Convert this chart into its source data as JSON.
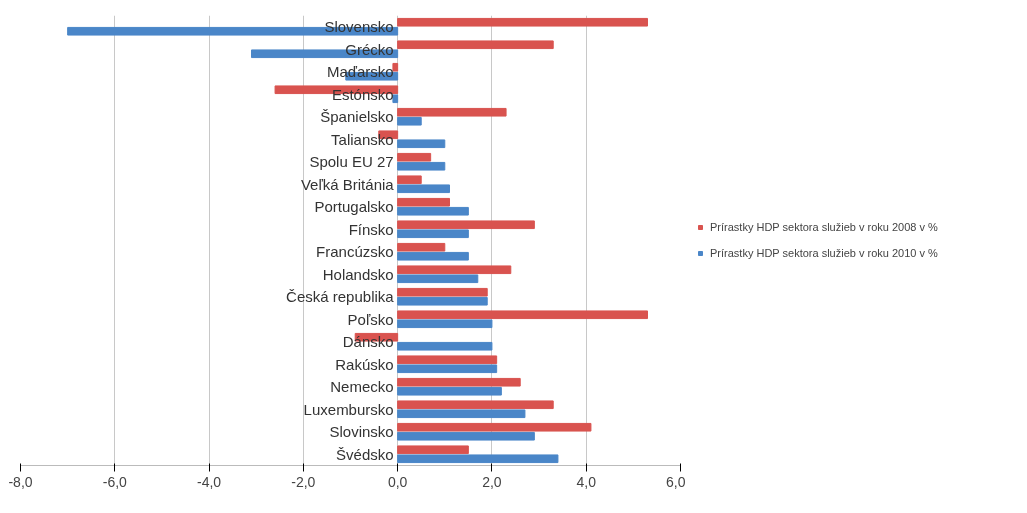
{
  "chart_data": {
    "type": "bar",
    "orientation": "horizontal",
    "categories": [
      "Slovensko",
      "Grécko",
      "Maďarsko",
      "Estónsko",
      "Španielsko",
      "Taliansko",
      "Spolu EU 27",
      "Veľká Británia",
      "Portugalsko",
      "Fínsko",
      "Francúzsko",
      "Holandsko",
      "Česká republika",
      "Poľsko",
      "Dánsko",
      "Rakúsko",
      "Nemecko",
      "Luxembursko",
      "Slovinsko",
      "Švédsko"
    ],
    "series": [
      {
        "name": "Prírastky HDP sektora služieb v roku 2008 v %",
        "color": "#d9534f",
        "values": [
          5.3,
          3.3,
          -0.1,
          -2.6,
          2.3,
          -0.4,
          0.7,
          0.5,
          1.1,
          2.9,
          1.0,
          2.4,
          1.9,
          5.3,
          -0.9,
          2.1,
          2.6,
          3.3,
          4.1,
          1.5
        ]
      },
      {
        "name": "Prírastky HDP sektora služieb v roku 2010 v %",
        "color": "#4a86c8",
        "values": [
          -7.0,
          -3.1,
          -1.1,
          -0.1,
          0.5,
          1.0,
          1.0,
          1.1,
          1.5,
          1.5,
          1.5,
          1.7,
          1.9,
          2.0,
          2.0,
          2.1,
          2.2,
          2.7,
          2.9,
          3.4
        ]
      }
    ],
    "xlim": [
      -8,
      6
    ],
    "xticks": [
      {
        "value": -8,
        "label": "-8,0"
      },
      {
        "value": -6,
        "label": "-6,0"
      },
      {
        "value": -4,
        "label": "-4,0"
      },
      {
        "value": -2,
        "label": "-2,0"
      },
      {
        "value": 0,
        "label": "0,0"
      },
      {
        "value": 2,
        "label": "2,0"
      },
      {
        "value": 4,
        "label": "4,0"
      },
      {
        "value": 6,
        "label": "6,0"
      }
    ],
    "grid": "x",
    "legend": "right"
  }
}
